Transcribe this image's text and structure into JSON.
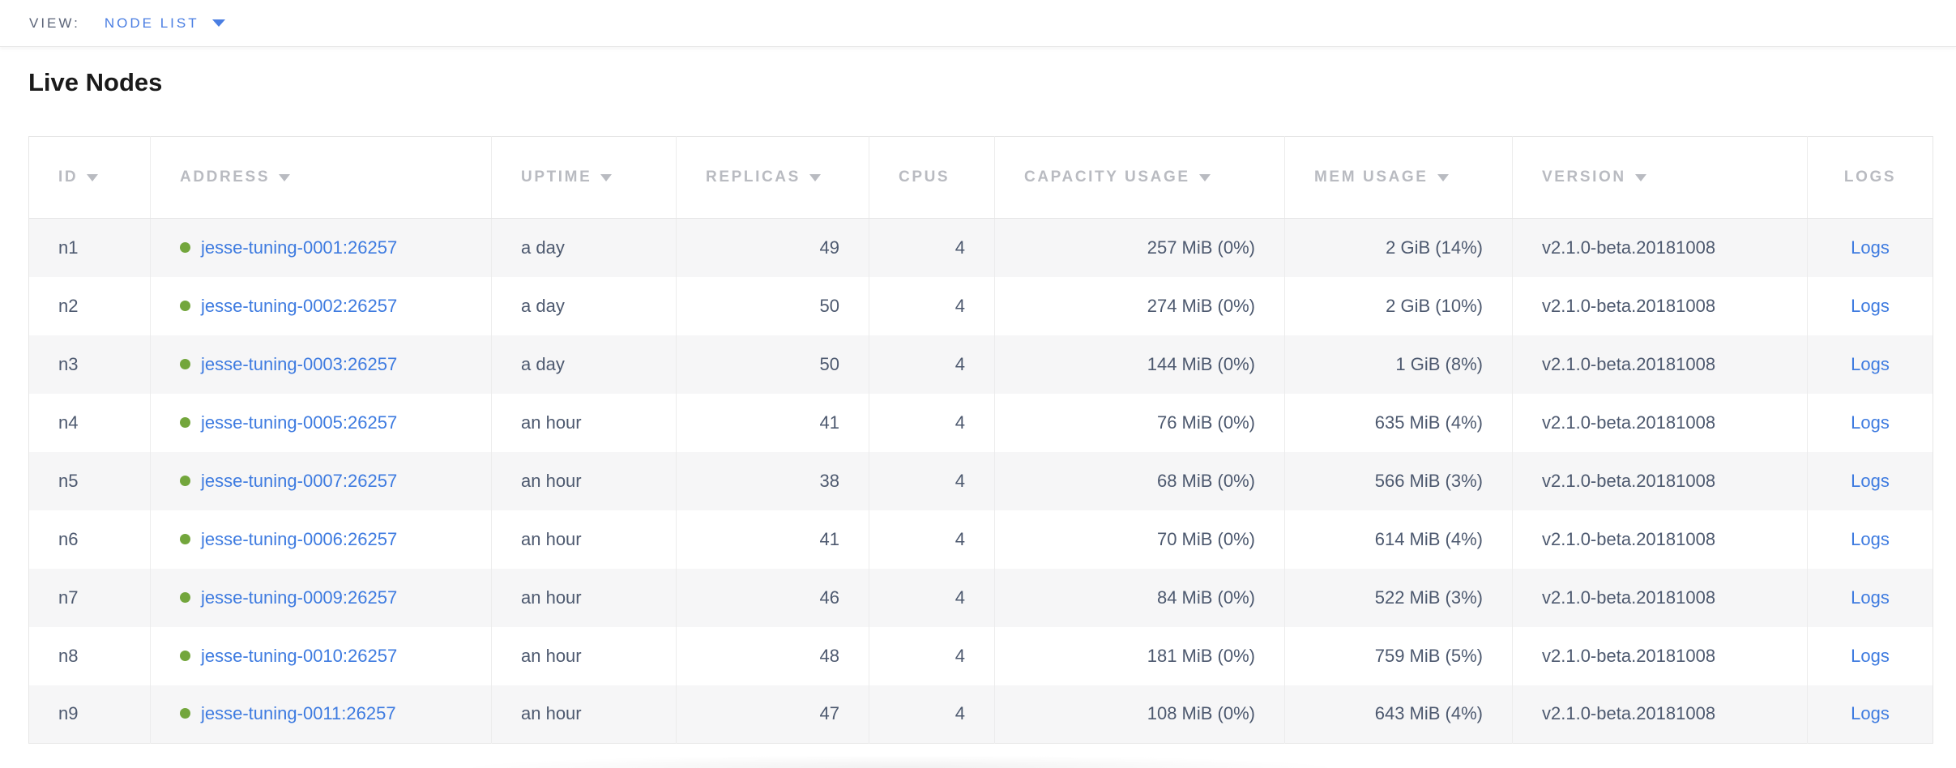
{
  "view_bar": {
    "label": "VIEW:",
    "selected_view": "NODE LIST"
  },
  "page_title": "Live Nodes",
  "table": {
    "columns": [
      {
        "key": "id",
        "label": "ID",
        "align": "left",
        "sortable": true,
        "type": "text"
      },
      {
        "key": "address",
        "label": "ADDRESS",
        "align": "left",
        "sortable": true,
        "type": "address"
      },
      {
        "key": "uptime",
        "label": "UPTIME",
        "align": "left",
        "sortable": true,
        "type": "text"
      },
      {
        "key": "replicas",
        "label": "REPLICAS",
        "align": "right",
        "sortable": true,
        "type": "text"
      },
      {
        "key": "cpus",
        "label": "CPUS",
        "align": "right",
        "sortable": false,
        "type": "text"
      },
      {
        "key": "capacity_usage",
        "label": "CAPACITY USAGE",
        "align": "right",
        "sortable": true,
        "type": "text"
      },
      {
        "key": "mem_usage",
        "label": "MEM USAGE",
        "align": "right",
        "sortable": true,
        "type": "text"
      },
      {
        "key": "version",
        "label": "VERSION",
        "align": "left",
        "sortable": true,
        "type": "text"
      },
      {
        "key": "logs",
        "label": "LOGS",
        "align": "center",
        "sortable": false,
        "type": "link"
      }
    ],
    "rows": [
      {
        "id": "n1",
        "address": "jesse-tuning-0001:26257",
        "uptime": "a day",
        "replicas": "49",
        "cpus": "4",
        "capacity_usage": "257 MiB (0%)",
        "mem_usage": "2 GiB (14%)",
        "version": "v2.1.0-beta.20181008",
        "logs": "Logs",
        "status": "live"
      },
      {
        "id": "n2",
        "address": "jesse-tuning-0002:26257",
        "uptime": "a day",
        "replicas": "50",
        "cpus": "4",
        "capacity_usage": "274 MiB (0%)",
        "mem_usage": "2 GiB (10%)",
        "version": "v2.1.0-beta.20181008",
        "logs": "Logs",
        "status": "live"
      },
      {
        "id": "n3",
        "address": "jesse-tuning-0003:26257",
        "uptime": "a day",
        "replicas": "50",
        "cpus": "4",
        "capacity_usage": "144 MiB (0%)",
        "mem_usage": "1 GiB (8%)",
        "version": "v2.1.0-beta.20181008",
        "logs": "Logs",
        "status": "live"
      },
      {
        "id": "n4",
        "address": "jesse-tuning-0005:26257",
        "uptime": "an hour",
        "replicas": "41",
        "cpus": "4",
        "capacity_usage": "76 MiB (0%)",
        "mem_usage": "635 MiB (4%)",
        "version": "v2.1.0-beta.20181008",
        "logs": "Logs",
        "status": "live"
      },
      {
        "id": "n5",
        "address": "jesse-tuning-0007:26257",
        "uptime": "an hour",
        "replicas": "38",
        "cpus": "4",
        "capacity_usage": "68 MiB (0%)",
        "mem_usage": "566 MiB (3%)",
        "version": "v2.1.0-beta.20181008",
        "logs": "Logs",
        "status": "live"
      },
      {
        "id": "n6",
        "address": "jesse-tuning-0006:26257",
        "uptime": "an hour",
        "replicas": "41",
        "cpus": "4",
        "capacity_usage": "70 MiB (0%)",
        "mem_usage": "614 MiB (4%)",
        "version": "v2.1.0-beta.20181008",
        "logs": "Logs",
        "status": "live"
      },
      {
        "id": "n7",
        "address": "jesse-tuning-0009:26257",
        "uptime": "an hour",
        "replicas": "46",
        "cpus": "4",
        "capacity_usage": "84 MiB (0%)",
        "mem_usage": "522 MiB (3%)",
        "version": "v2.1.0-beta.20181008",
        "logs": "Logs",
        "status": "live"
      },
      {
        "id": "n8",
        "address": "jesse-tuning-0010:26257",
        "uptime": "an hour",
        "replicas": "48",
        "cpus": "4",
        "capacity_usage": "181 MiB (0%)",
        "mem_usage": "759 MiB (5%)",
        "version": "v2.1.0-beta.20181008",
        "logs": "Logs",
        "status": "live"
      },
      {
        "id": "n9",
        "address": "jesse-tuning-0011:26257",
        "uptime": "an hour",
        "replicas": "47",
        "cpus": "4",
        "capacity_usage": "108 MiB (0%)",
        "mem_usage": "643 MiB (4%)",
        "version": "v2.1.0-beta.20181008",
        "logs": "Logs",
        "status": "live"
      }
    ]
  },
  "colors": {
    "accent_blue": "#4a7ee2",
    "link_blue": "#3e7be0",
    "live_green": "#73a63c",
    "header_gray": "#b9bbc1",
    "cell_slate": "#4d596f",
    "title_black": "#1a1a1a",
    "view_label_gray": "#5b6478",
    "stripe_gray": "#f6f6f7",
    "border_gray": "#e6e6e6",
    "column_line": "#ececec"
  }
}
